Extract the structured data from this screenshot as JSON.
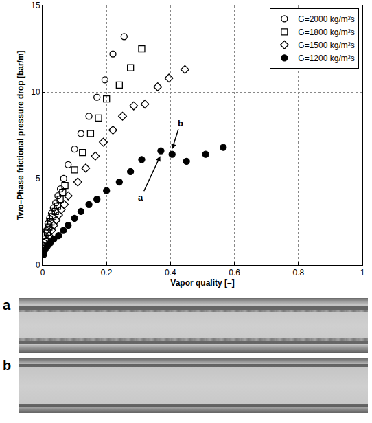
{
  "chart_data": {
    "type": "scatter",
    "x_label": "Vapor quality [–]",
    "y_label": "Two–Phase frictional pressure drop [bar/m]",
    "xlim": [
      0,
      1
    ],
    "xticks": [
      0,
      0.2,
      0.4,
      0.6,
      0.8,
      1
    ],
    "ylim": [
      0,
      15
    ],
    "yticks": [
      0,
      5,
      10,
      15
    ],
    "grid": true,
    "legend": "top right",
    "series": [
      {
        "name": "G=2000 kg/m²s",
        "color": "#000000",
        "marker": "circle-open",
        "x": [
          0.004,
          0.008,
          0.012,
          0.017,
          0.022,
          0.028,
          0.034,
          0.041,
          0.048,
          0.056,
          0.066,
          0.08,
          0.1,
          0.12,
          0.145,
          0.17,
          0.195,
          0.22,
          0.255
        ],
        "values": [
          1.3,
          1.7,
          2.0,
          2.4,
          2.7,
          3.0,
          3.3,
          3.6,
          4.0,
          4.4,
          5.0,
          5.8,
          6.7,
          7.6,
          8.6,
          9.7,
          10.7,
          12.2,
          13.2
        ]
      },
      {
        "name": "G=1800 kg/m²s",
        "color": "#000000",
        "marker": "square-open",
        "x": [
          0.004,
          0.01,
          0.015,
          0.02,
          0.026,
          0.032,
          0.04,
          0.047,
          0.055,
          0.063,
          0.07,
          0.1,
          0.125,
          0.15,
          0.175,
          0.2,
          0.24,
          0.275,
          0.31
        ],
        "values": [
          1.1,
          1.5,
          1.9,
          2.2,
          2.5,
          2.8,
          3.1,
          3.4,
          3.8,
          4.2,
          4.6,
          5.5,
          6.5,
          7.6,
          8.5,
          9.6,
          10.4,
          11.4,
          12.5
        ]
      },
      {
        "name": "G=1500 kg/m²s",
        "color": "#000000",
        "marker": "diamond-open",
        "x": [
          0.005,
          0.012,
          0.02,
          0.028,
          0.035,
          0.043,
          0.05,
          0.058,
          0.068,
          0.08,
          0.11,
          0.135,
          0.165,
          0.19,
          0.22,
          0.25,
          0.285,
          0.32,
          0.36,
          0.395,
          0.445
        ],
        "values": [
          1.0,
          1.4,
          1.7,
          2.0,
          2.3,
          2.6,
          2.9,
          3.2,
          3.5,
          4.0,
          4.8,
          5.6,
          6.3,
          7.1,
          7.8,
          8.6,
          9.2,
          9.3,
          10.3,
          10.8,
          11.3
        ]
      },
      {
        "name": "G=1200 kg/m²s",
        "color": "#000000",
        "marker": "circle",
        "x": [
          0.003,
          0.008,
          0.015,
          0.025,
          0.035,
          0.05,
          0.065,
          0.08,
          0.1,
          0.12,
          0.145,
          0.17,
          0.2,
          0.24,
          0.275,
          0.31,
          0.37,
          0.405,
          0.45,
          0.51,
          0.565
        ],
        "values": [
          0.6,
          0.9,
          1.1,
          1.3,
          1.5,
          1.7,
          2.0,
          2.3,
          2.7,
          3.1,
          3.5,
          3.8,
          4.3,
          4.8,
          5.4,
          6.1,
          6.6,
          6.4,
          6.0,
          6.4,
          6.8
        ]
      }
    ],
    "annotations": [
      {
        "text": "a",
        "x": 0.368,
        "y": 6.3
      },
      {
        "text": "b",
        "x": 0.405,
        "y": 6.7
      }
    ]
  },
  "photos": [
    {
      "label": "a"
    },
    {
      "label": "b"
    }
  ]
}
